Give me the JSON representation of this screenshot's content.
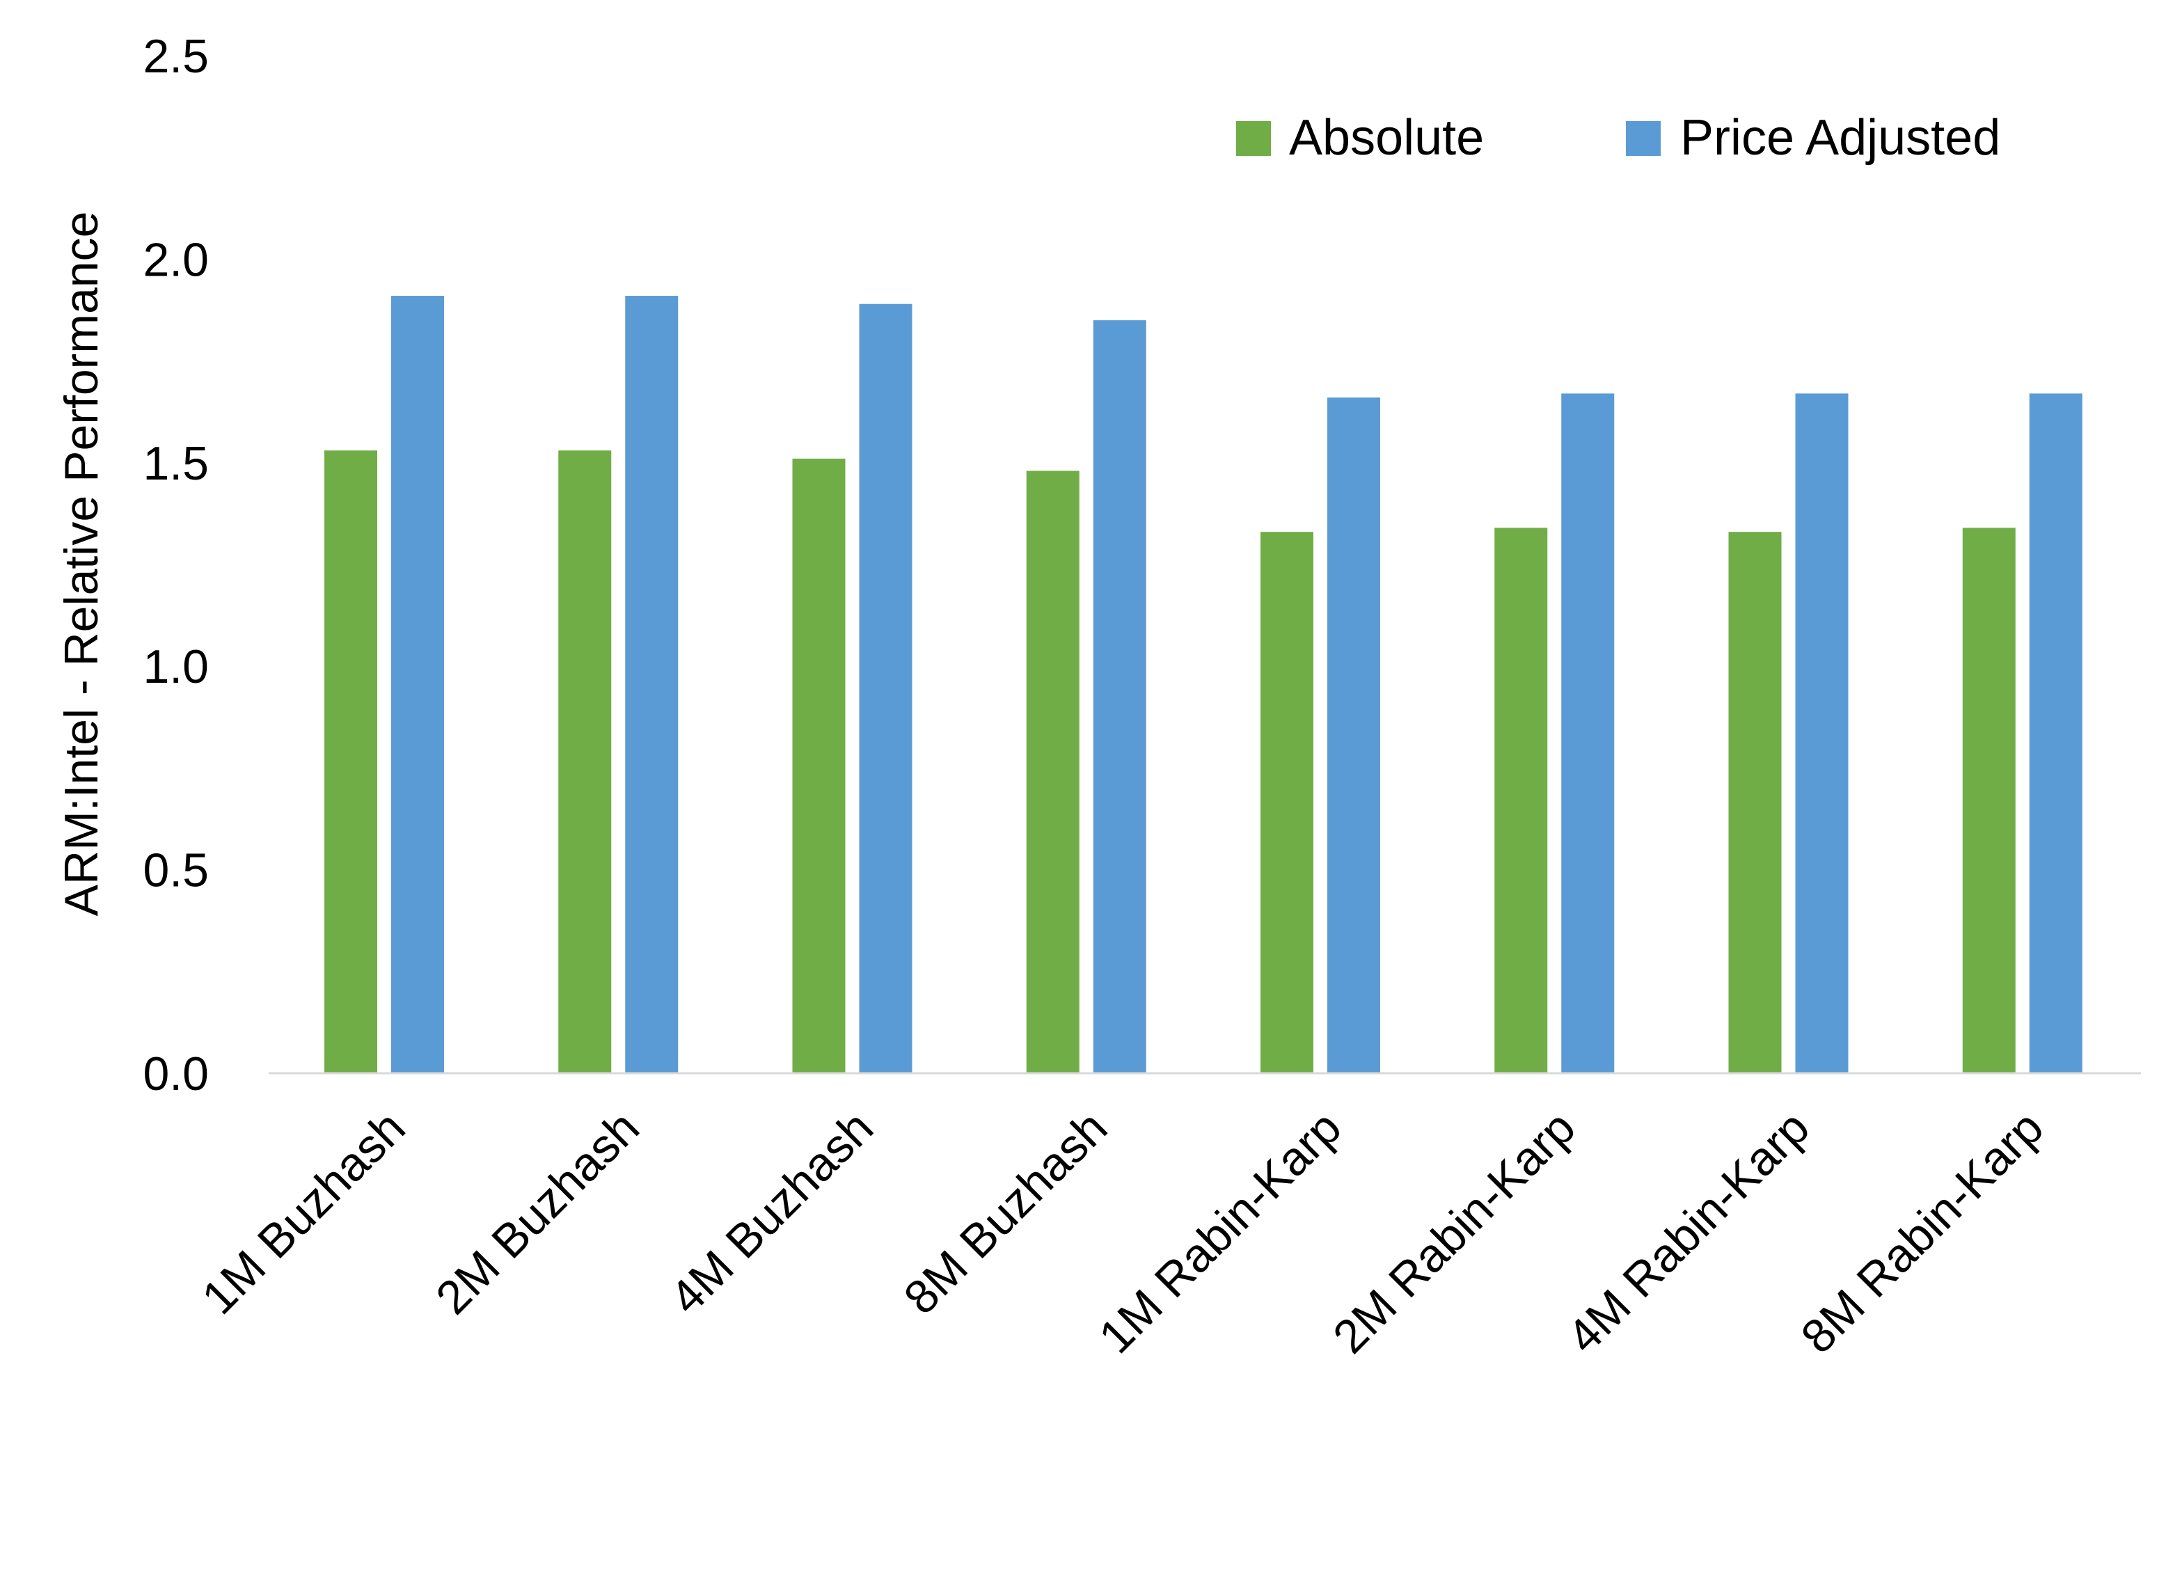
{
  "chart_data": {
    "type": "bar",
    "title": "",
    "xlabel": "",
    "ylabel": "ARM:Intel - Relative Performance",
    "ylim": [
      0,
      2.5
    ],
    "yticks": [
      "0.0",
      "0.5",
      "1.0",
      "1.5",
      "2.0",
      "2.5"
    ],
    "grid": false,
    "legend_position": "top-right",
    "categories": [
      "1M Buzhash",
      "2M Buzhash",
      "4M Buzhash",
      "8M Buzhash",
      "1M Rabin-Karp",
      "2M Rabin-Karp",
      "4M Rabin-Karp",
      "8M Rabin-Karp"
    ],
    "series": [
      {
        "name": "Absolute",
        "color": "#70AD47",
        "values": [
          1.53,
          1.53,
          1.51,
          1.48,
          1.33,
          1.34,
          1.33,
          1.34
        ]
      },
      {
        "name": "Price Adjusted",
        "color": "#5B9BD5",
        "values": [
          1.91,
          1.91,
          1.89,
          1.85,
          1.66,
          1.67,
          1.67,
          1.67
        ]
      }
    ]
  }
}
